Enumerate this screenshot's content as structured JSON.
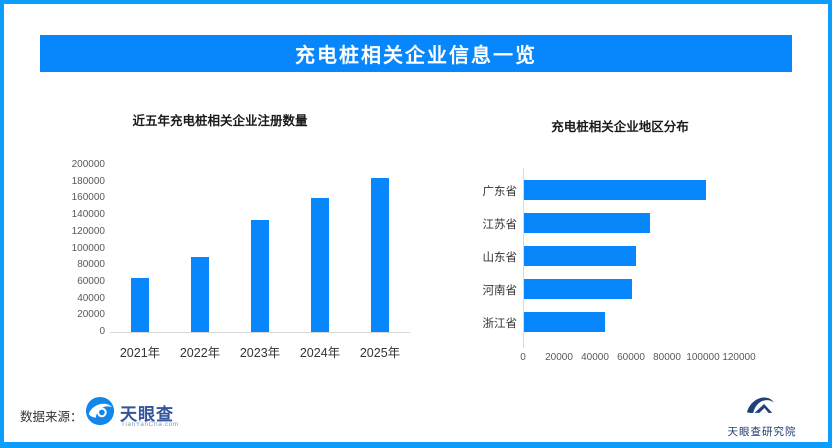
{
  "header": {
    "title": "充电桩相关企业信息一览"
  },
  "chart_data": [
    {
      "type": "bar",
      "orientation": "vertical",
      "title": "近五年充电桩相关企业注册数量",
      "categories": [
        "2021年",
        "2022年",
        "2023年",
        "2024年",
        "2025年"
      ],
      "values": [
        65000,
        90000,
        134000,
        161000,
        184000
      ],
      "ylim": [
        0,
        200000
      ],
      "yticks": [
        0,
        20000,
        40000,
        60000,
        80000,
        100000,
        120000,
        140000,
        160000,
        180000,
        200000
      ],
      "xlabel": "",
      "ylabel": "",
      "grid": false,
      "legend": "none",
      "bar_color": "#0787fb"
    },
    {
      "type": "bar",
      "orientation": "horizontal",
      "title": "充电桩相关企业地区分布",
      "categories": [
        "广东省",
        "江苏省",
        "山东省",
        "河南省",
        "浙江省"
      ],
      "values": [
        101000,
        70000,
        62000,
        60000,
        45000
      ],
      "xlim": [
        0,
        130000
      ],
      "xticks": [
        0,
        20000,
        40000,
        60000,
        80000,
        100000,
        120000
      ],
      "xlabel": "",
      "ylabel": "",
      "grid": false,
      "legend": "none",
      "bar_color": "#0787fb"
    }
  ],
  "footer": {
    "source_label": "数据来源：",
    "logo_text": "天眼查",
    "logo_subtext": "TianYanCha.com"
  },
  "corner_logo": {
    "text": "天眼查研究院"
  },
  "colors": {
    "accent_blue": "#0787fb",
    "border_blue": "#0c9dfd",
    "logo_navy": "#24477e",
    "axis_gray": "#d9d9d9",
    "tick_text": "#595959",
    "body_text": "#333333"
  }
}
